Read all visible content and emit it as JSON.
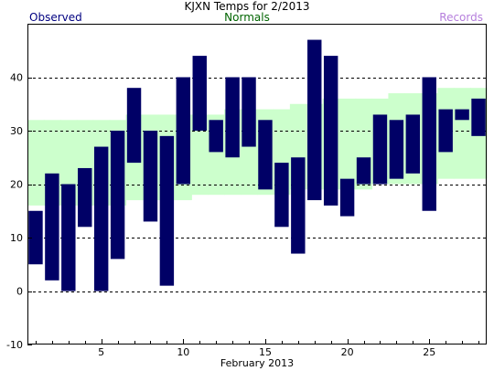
{
  "chart_data": {
    "type": "bar",
    "title": "KJXN Temps for 2/2013",
    "xlabel": "February 2013",
    "ylabel": "",
    "legend": {
      "observed": "Observed",
      "normals": "Normals",
      "records": "Records"
    },
    "colors": {
      "observed": "#000066",
      "observed_legend": "#000080",
      "normals": "#ccffcc",
      "normals_legend": "#006400",
      "records": "#b57edc",
      "grid": "#000000"
    },
    "xlim": [
      0.5,
      28.5
    ],
    "ylim": [
      -10,
      50
    ],
    "x_ticks": [
      5,
      10,
      15,
      20,
      25
    ],
    "y_ticks": [
      -10,
      0,
      10,
      20,
      30,
      40
    ],
    "grid": "dashed horizontal at labeled y ticks",
    "series": [
      {
        "name": "Observed",
        "days": [
          1,
          2,
          3,
          4,
          5,
          6,
          7,
          8,
          9,
          10,
          11,
          12,
          13,
          14,
          15,
          16,
          17,
          18,
          19,
          20,
          21,
          22,
          23,
          24,
          25,
          26,
          27,
          28
        ],
        "high": [
          15,
          22,
          20,
          23,
          27,
          30,
          38,
          30,
          29,
          40,
          44,
          32,
          40,
          40,
          32,
          24,
          25,
          47,
          44,
          21,
          25,
          33,
          32,
          33,
          40,
          34,
          34,
          36
        ],
        "low": [
          5,
          2,
          0,
          12,
          0,
          6,
          24,
          13,
          1,
          20,
          30,
          26,
          25,
          27,
          19,
          12,
          7,
          17,
          16,
          14,
          20,
          20,
          21,
          22,
          15,
          26,
          32,
          29
        ]
      },
      {
        "name": "Normals",
        "days": [
          1,
          2,
          3,
          4,
          5,
          6,
          7,
          8,
          9,
          10,
          11,
          12,
          13,
          14,
          15,
          16,
          17,
          18,
          19,
          20,
          21,
          22,
          23,
          24,
          25,
          26,
          27,
          28
        ],
        "high": [
          32,
          32,
          32,
          32,
          32,
          32,
          33,
          33,
          33,
          33,
          33,
          33,
          34,
          34,
          34,
          34,
          35,
          35,
          36,
          36,
          36,
          36,
          37,
          37,
          37,
          38,
          38,
          38
        ],
        "low": [
          16,
          16,
          16,
          16,
          16,
          16,
          17,
          17,
          17,
          17,
          18,
          18,
          18,
          18,
          18,
          18,
          19,
          19,
          19,
          19,
          19,
          20,
          20,
          20,
          20,
          21,
          21,
          21
        ]
      }
    ]
  }
}
